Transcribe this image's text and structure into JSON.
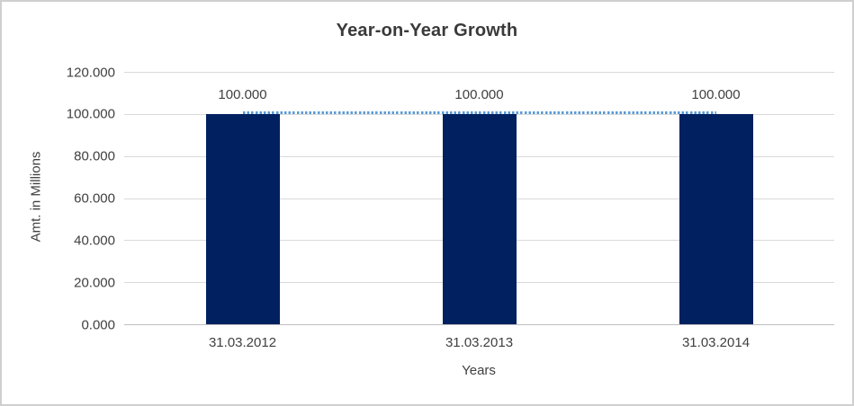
{
  "frame": {
    "background": "#ffffff",
    "border_color": "#cfcfcf"
  },
  "chart_data": {
    "type": "bar",
    "title": "Year-on-Year Growth",
    "xlabel": "Years",
    "ylabel": "Amt. in Millions",
    "categories": [
      "31.03.2012",
      "31.03.2013",
      "31.03.2014"
    ],
    "series": [
      {
        "name": "amount-bars",
        "type": "bar",
        "values": [
          100,
          100,
          100
        ],
        "color": "#002060"
      },
      {
        "name": "trendline",
        "type": "dotted-line",
        "values": [
          100,
          100,
          100
        ],
        "color": "#5b9bd5"
      }
    ],
    "data_labels": [
      "100.000",
      "100.000",
      "100.000"
    ],
    "yticks": [
      {
        "value": 120,
        "label": "120.000"
      },
      {
        "value": 100,
        "label": "100.000"
      },
      {
        "value": 80,
        "label": "80.000"
      },
      {
        "value": 60,
        "label": "60.000"
      },
      {
        "value": 40,
        "label": "40.000"
      },
      {
        "value": 20,
        "label": "20.000"
      },
      {
        "value": 0,
        "label": "0.000"
      }
    ],
    "ylim": [
      0,
      120
    ],
    "grid": "horizontal",
    "legend_position": "none",
    "colors": {
      "bar": "#002060",
      "trendline": "#5b9bd5",
      "gridline": "#d9d9d9",
      "axis_line": "#bfbfbf",
      "text": "#404040",
      "title": "#3a3a3a"
    }
  }
}
